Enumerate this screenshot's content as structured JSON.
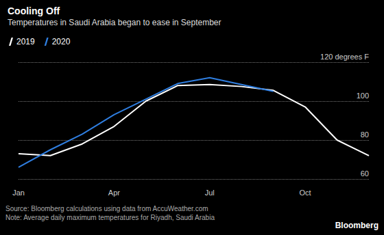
{
  "chart_data": {
    "type": "line",
    "title": "Cooling Off",
    "subtitle": "Temperatures in Saudi Arabia began to ease in September",
    "categories": [
      "Jan",
      null,
      null,
      "Apr",
      null,
      null,
      "Jul",
      null,
      null,
      "Oct",
      null,
      null
    ],
    "series": [
      {
        "name": "2019",
        "color": "#ffffff",
        "values": [
          73,
          72,
          78,
          87,
          100,
          108,
          108.5,
          107.5,
          105.5,
          97,
          80,
          72
        ]
      },
      {
        "name": "2020",
        "color": "#2f7ee0",
        "values": [
          66,
          75,
          83,
          93,
          101,
          109,
          112,
          108.5,
          105,
          null,
          null,
          null
        ]
      }
    ],
    "ylim": [
      60,
      120
    ],
    "yticks": [
      60,
      80,
      100,
      {
        "value": 120,
        "label": "120 degrees F"
      }
    ],
    "grid": true,
    "legend": "top-left",
    "notes": [
      "Source: Bloomberg calculations using data from AccuWeather.com",
      "Note: Average daily maximum temperatures for Riyadh, Saudi Arabia"
    ],
    "credit": "Bloomberg"
  }
}
